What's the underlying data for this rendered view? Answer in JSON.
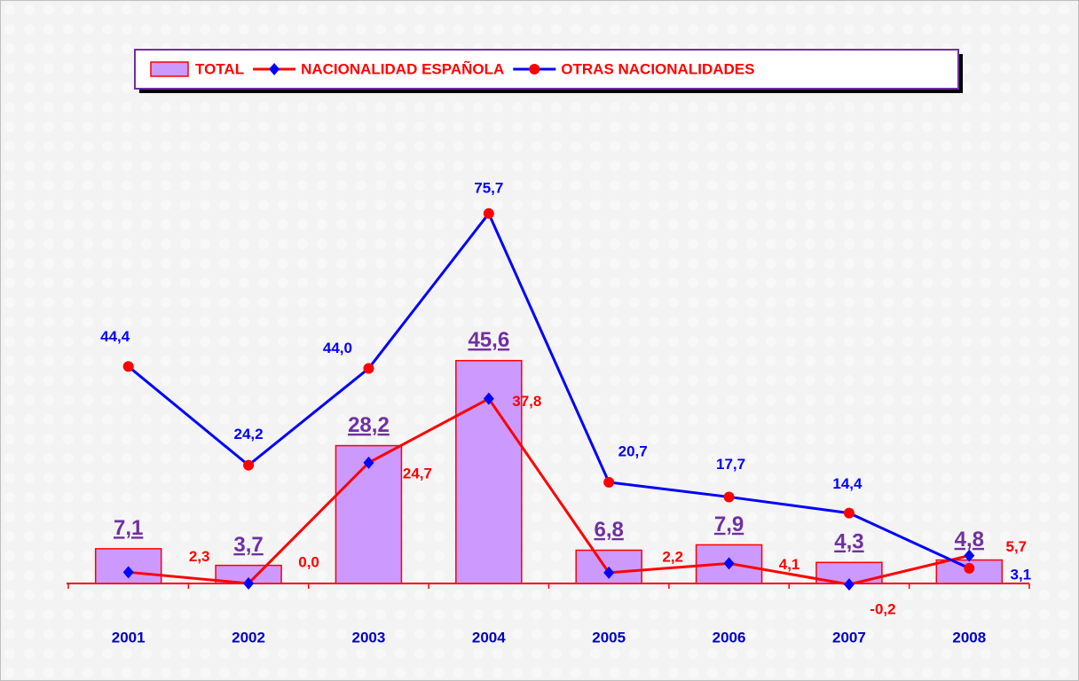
{
  "chart_data": {
    "type": "bar",
    "categories": [
      "2001",
      "2002",
      "2003",
      "2004",
      "2005",
      "2006",
      "2007",
      "2008"
    ],
    "ylim": [
      -10,
      90
    ],
    "series": [
      {
        "name": "TOTAL",
        "type": "bar",
        "color": "#cc99ff",
        "edge_color": "#ff0000",
        "label_color": "#7030a0",
        "values": [
          7.1,
          3.7,
          28.2,
          45.6,
          6.8,
          7.9,
          4.3,
          4.8
        ],
        "value_labels": [
          "7,1",
          "3,7",
          "28,2",
          "45,6",
          "6,8",
          "7,9",
          "4,3",
          "4,8"
        ]
      },
      {
        "name": "NACIONALIDAD ESPAÑOLA",
        "type": "line",
        "color": "#ff0000",
        "marker": "diamond",
        "marker_color": "#0000ff",
        "label_color": "#ff0000",
        "values": [
          2.3,
          0.0,
          24.7,
          37.8,
          2.2,
          4.1,
          -0.2,
          5.7
        ],
        "value_labels": [
          "2,3",
          "0,0",
          "24,7",
          "37,8",
          "2,2",
          "4,1",
          "-0,2",
          "5,7"
        ]
      },
      {
        "name": "OTRAS NACIONALIDADES",
        "type": "line",
        "color": "#0000ff",
        "marker": "circle",
        "marker_color": "#ff0000",
        "label_color": "#0000ff",
        "values": [
          44.4,
          24.2,
          44.0,
          75.7,
          20.7,
          17.7,
          14.4,
          3.1
        ],
        "value_labels": [
          "44,4",
          "24,2",
          "44,0",
          "75,7",
          "20,7",
          "17,7",
          "14,4",
          "3,1"
        ]
      }
    ]
  }
}
